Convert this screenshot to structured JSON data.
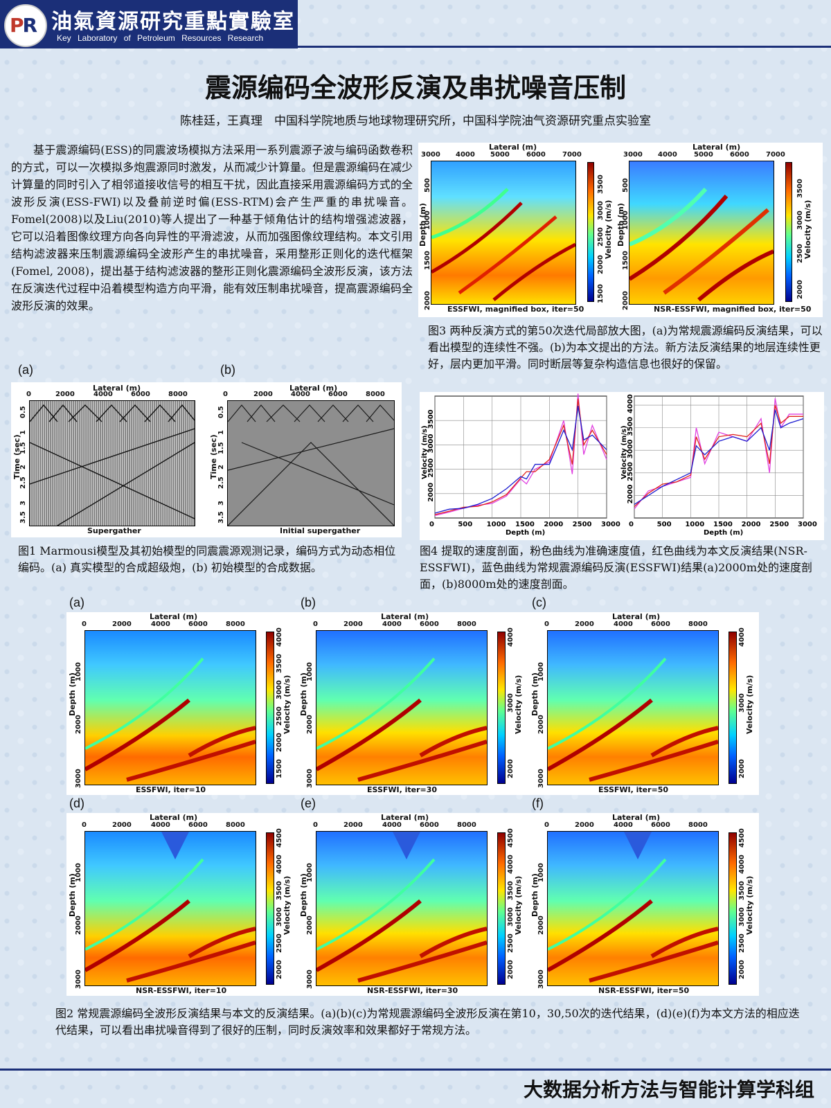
{
  "header": {
    "logo_text_p": "P",
    "logo_text_r": "R",
    "lab_name_cn": "油氣資源研究重點實驗室",
    "lab_name_en": "Key Laboratory of Petroleum Resources Research"
  },
  "title": "震源编码全波形反演及串扰噪音压制",
  "authors": "陈桂廷，王真理　中国科学院地质与地球物理研究所，中国科学院油气资源研究重点实验室",
  "abstract": "基于震源编码(ESS)的同震波场模拟方法采用一系列震源子波与编码函数卷积的方式，可以一次模拟多炮震源同时激发，从而减少计算量。但是震源编码在减少计算量的同时引入了相邻道接收信号的相互干扰，因此直接采用震源编码方式的全波形反演(ESS-FWI)以及叠前逆时偏(ESS-RTM)会产生严重的串扰噪音。 Fomel(2008)以及Liu(2010)等人提出了一种基于倾角估计的结构增强滤波器，它可以沿着图像纹理方向各向异性的平滑滤波，从而加强图像纹理结构。本文引用结构滤波器来压制震源编码全波形产生的串扰噪音，采用整形正则化的迭代框架(Fomel, 2008)，提出基于结构滤波器的整形正则化震源编码全波形反演，该方法在反演迭代过程中沿着模型构造方向平滑，能有效压制串扰噪音，提高震源编码全波形反演的效果。",
  "fig1": {
    "label_a": "(a)",
    "label_b": "(b)",
    "xlabel": "Lateral (m)",
    "ylabel": "Time (sec)",
    "xticks": [
      "0",
      "2000",
      "4000",
      "6000",
      "8000"
    ],
    "yticks": [
      "0.5",
      "1",
      "1.5",
      "2",
      "2.5",
      "3",
      "3.5"
    ],
    "title_a": "Supergather",
    "title_b": "Initial supergather",
    "caption": "图1 Marmousi模型及其初始模型的同震震源观测记录，编码方式为动态相位编码。(a) 真实模型的合成超级炮，(b) 初始模型的合成数据。"
  },
  "fig3": {
    "xlabel": "Lateral (m)",
    "ylabel": "Depth (m)",
    "cbar_label": "Velocity (m/s)",
    "xticks": [
      "3000",
      "4000",
      "5000",
      "6000",
      "7000"
    ],
    "yticks": [
      "500",
      "1000",
      "1500",
      "2000"
    ],
    "cticks_a": [
      "1500",
      "2000",
      "2500",
      "3000",
      "3500"
    ],
    "cticks_b": [
      "2000",
      "2500",
      "3000",
      "3500"
    ],
    "title_a": "ESSFWI, magnified box, iter=50",
    "title_b": "NSR-ESSFWI, magnified box, iter=50",
    "caption": "图3 两种反演方式的第50次迭代局部放大图，(a)为常规震源编码反演结果，可以看出模型的连续性不强。(b)为本文提出的方法。新方法反演结果的地层连续性更好，层内更加平滑。同时断层等复杂构造信息也很好的保留。"
  },
  "fig4": {
    "xlabel": "Depth (m)",
    "ylabel": "Velocity (m/s)",
    "xticks": [
      "0",
      "500",
      "1000",
      "1500",
      "2000",
      "2500",
      "3000"
    ],
    "yticks_a": [
      "2000",
      "2500",
      "3000",
      "3500"
    ],
    "yticks_b": [
      "2000",
      "2500",
      "3000",
      "3500",
      "4000"
    ],
    "caption": "图4 提取的速度剖面，粉色曲线为准确速度值，红色曲线为本文反演结果(NSR-ESSFWI)，蓝色曲线为常规震源编码反演(ESSFWI)结果(a)2000m处的速度剖面，(b)8000m处的速度剖面。"
  },
  "chart_data": [
    {
      "type": "line",
      "xlabel": "Depth (m)",
      "ylabel": "Velocity (m/s)",
      "xlim": [
        0,
        3000
      ],
      "ylim": [
        1500,
        4000
      ],
      "x": [
        0,
        250,
        500,
        750,
        1000,
        1250,
        1500,
        1600,
        1750,
        2000,
        2250,
        2400,
        2500,
        2600,
        2750,
        3000
      ],
      "series": [
        {
          "color": "#e040e0",
          "values": [
            1550,
            1620,
            1700,
            1760,
            1800,
            1950,
            2300,
            2200,
            2500,
            2650,
            3500,
            2400,
            4050,
            2800,
            3400,
            2700
          ]
        },
        {
          "color": "#e0201a",
          "values": [
            1570,
            1640,
            1720,
            1740,
            1830,
            1980,
            2320,
            2450,
            2450,
            2700,
            3400,
            2600,
            3950,
            3000,
            3300,
            2800
          ]
        },
        {
          "color": "#1a1ad0",
          "values": [
            1600,
            1680,
            1700,
            1780,
            1900,
            2100,
            2350,
            2300,
            2600,
            2600,
            3300,
            2900,
            3800,
            3100,
            3200,
            2900
          ]
        }
      ]
    },
    {
      "type": "line",
      "xlabel": "Depth (m)",
      "ylabel": "Velocity (m/s)",
      "xlim": [
        0,
        3000
      ],
      "ylim": [
        1500,
        4200
      ],
      "x": [
        0,
        250,
        500,
        750,
        1000,
        1100,
        1250,
        1500,
        1750,
        2000,
        2250,
        2400,
        2500,
        2600,
        2750,
        3000
      ],
      "series": [
        {
          "color": "#e040e0",
          "values": [
            1700,
            2100,
            2200,
            2300,
            2400,
            3500,
            2700,
            3400,
            3300,
            3200,
            3700,
            2500,
            4150,
            3500,
            3800,
            3800
          ]
        },
        {
          "color": "#e0201a",
          "values": [
            1750,
            2050,
            2250,
            2300,
            2450,
            3300,
            2800,
            3300,
            3350,
            3300,
            3600,
            2700,
            4000,
            3600,
            3750,
            3750
          ]
        },
        {
          "color": "#1a1ad0",
          "values": [
            1800,
            2000,
            2200,
            2350,
            2500,
            3100,
            2900,
            3200,
            3300,
            3200,
            3500,
            3000,
            3900,
            3500,
            3600,
            3700
          ]
        }
      ]
    }
  ],
  "fig2": {
    "labels": [
      "(a)",
      "(b)",
      "(c)",
      "(d)",
      "(e)",
      "(f)"
    ],
    "xlabel": "Lateral (m)",
    "ylabel": "Depth (m)",
    "cbar_label": "Velocity (m/s)",
    "xticks": [
      "0",
      "2000",
      "4000",
      "6000",
      "8000"
    ],
    "yticks": [
      "1000",
      "2000",
      "3000"
    ],
    "titles": [
      "ESSFWI, iter=10",
      "ESSFWI, iter=30",
      "ESSFWI, iter=50",
      "NSR-ESSFWI, iter=10",
      "NSR-ESSFWI, iter=30",
      "NSR-ESSFWI, iter=50"
    ],
    "cticks": [
      [
        "1500",
        "2000",
        "2500",
        "3000",
        "3500",
        "4000"
      ],
      [
        "2000",
        "3000",
        "4000"
      ],
      [
        "2000",
        "3000",
        "4000"
      ],
      [
        "2000",
        "2500",
        "3000",
        "3500",
        "4000",
        "4500"
      ],
      [
        "2000",
        "2500",
        "3000",
        "3500",
        "4000",
        "4500"
      ],
      [
        "2000",
        "2500",
        "3000",
        "3500",
        "4000",
        "4500"
      ]
    ],
    "caption": "图2 常规震源编码全波形反演结果与本文的反演结果。(a)(b)(c)为常规震源编码全波形反演在第10，30,50次的迭代结果，(d)(e)(f)为本文方法的相应迭代结果，可以看出串扰噪音得到了很好的压制，同时反演效率和效果都好于常规方法。"
  },
  "footer": "大数据分析方法与智能计算学科组",
  "colors": {
    "navy": "#1b2f78",
    "bg": "#dbe6f2"
  }
}
